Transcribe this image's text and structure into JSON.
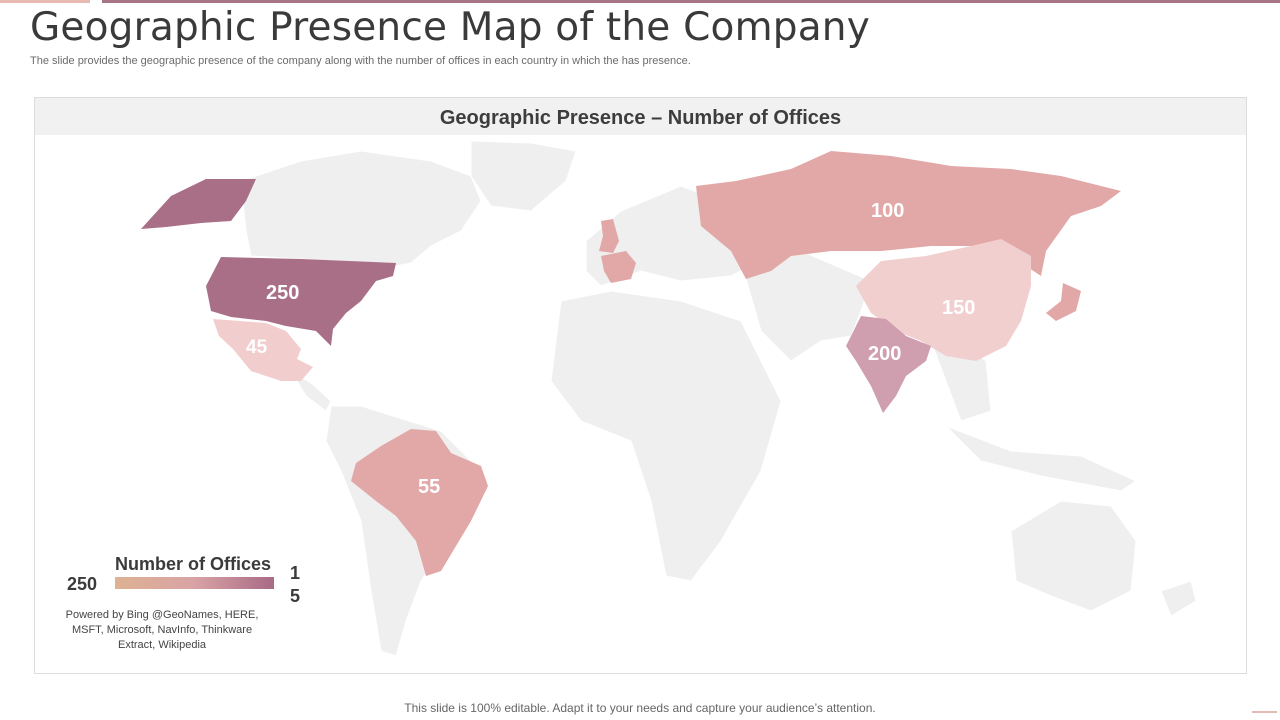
{
  "slide": {
    "title": "Geographic Presence Map of the Company",
    "subtitle": "The slide provides the geographic presence of the company along with the number of offices in each country in which the has presence.",
    "footer": "This slide is 100% editable. Adapt it to your needs and capture your audience’s attention."
  },
  "map": {
    "header": "Geographic Presence – Number of Offices",
    "colors": {
      "base_land": "#efefef",
      "low": "#f2cfcf",
      "mid": "#e2a7a7",
      "high": "#a86f87",
      "india": "#cf9faf"
    },
    "countries": [
      {
        "name": "United States",
        "offices": 250,
        "label": "250",
        "color": "#a86f87"
      },
      {
        "name": "Mexico",
        "offices": 45,
        "label": "45",
        "color": "#f1cdcd"
      },
      {
        "name": "Brazil",
        "offices": 55,
        "label": "55",
        "color": "#e2a7a7"
      },
      {
        "name": "Russia",
        "offices": 100,
        "label": "100",
        "color": "#e2a7a7"
      },
      {
        "name": "China",
        "offices": 150,
        "label": "150",
        "color": "#f2cfcf"
      },
      {
        "name": "India",
        "offices": 200,
        "label": "200",
        "color": "#cf9faf"
      }
    ]
  },
  "legend": {
    "title": "Number of Offices",
    "max": "250",
    "min": "15",
    "gradient": [
      "#ddb292",
      "#d9a3a5",
      "#a86a85"
    ]
  },
  "credits": "Powered by Bing @GeoNames, HERE, MSFT, Microsoft, NavInfo, Thinkware Extract, Wikipedia"
}
